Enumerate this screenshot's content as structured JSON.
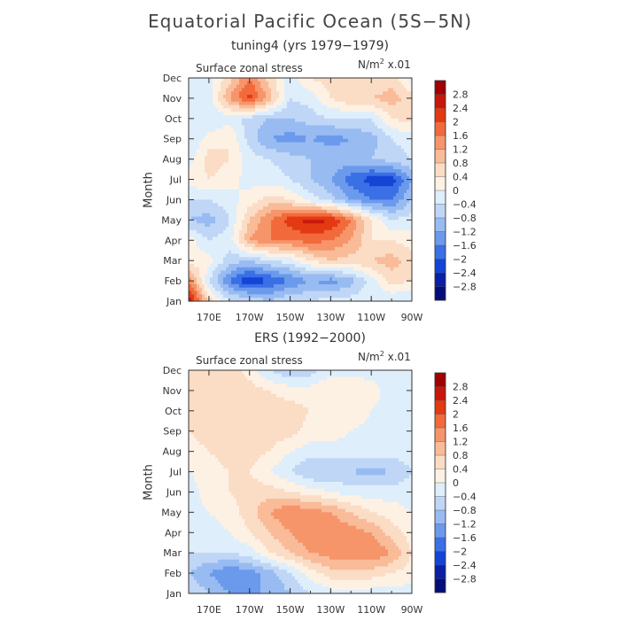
{
  "title": "Equatorial Pacific Ocean (5S−5N)",
  "colorbar": {
    "labels": [
      "2.8",
      "2.4",
      "2",
      "1.6",
      "1.2",
      "0.8",
      "0.4",
      "0",
      "−0.4",
      "−0.8",
      "−1.2",
      "−1.6",
      "−2",
      "−2.4",
      "−2.8"
    ],
    "colors": [
      "#a00000",
      "#c8170b",
      "#e33a14",
      "#f26a3b",
      "#f7956a",
      "#f9bb98",
      "#fbdcc5",
      "#fdf1e4",
      "#deeefb",
      "#bfd6f6",
      "#98bbf2",
      "#6b9aec",
      "#3a6fe5",
      "#1444d6",
      "#0a1fa6",
      "#040e79"
    ]
  },
  "chart_data": [
    {
      "type": "heatmap",
      "title": "tuning4 (yrs 1979−1979)",
      "variable": "Surface zonal stress",
      "units_prefix": "N/m",
      "units_exp": "2",
      "units_suffix": " x.01",
      "ylabel": "Month",
      "xlabel": "",
      "x_ticks": [
        "170E",
        "170W",
        "150W",
        "130W",
        "110W",
        "90W"
      ],
      "y_ticks": [
        "Jan",
        "Feb",
        "Mar",
        "Apr",
        "May",
        "Jun",
        "Jul",
        "Aug",
        "Sep",
        "Oct",
        "Nov",
        "Dec"
      ],
      "x_range_deg_east": [
        160,
        270
      ],
      "levels": [
        -2.8,
        -2.4,
        -2.0,
        -1.6,
        -1.2,
        -0.8,
        -0.4,
        0,
        0.4,
        0.8,
        1.2,
        1.6,
        2.0,
        2.4,
        2.8
      ],
      "grid_lon": [
        160,
        170,
        180,
        190,
        200,
        210,
        220,
        230,
        240,
        250,
        260,
        270
      ],
      "values": [
        [
          2.8,
          0.6,
          -0.4,
          -0.4,
          -0.8,
          -0.4,
          -0.4,
          -0.2,
          -0.2,
          -0.2,
          -0.4,
          -0.4
        ],
        [
          1.6,
          -0.4,
          -1.6,
          -2.4,
          -2.0,
          -1.6,
          -1.2,
          -1.4,
          -1.0,
          -0.2,
          0.6,
          0.4
        ],
        [
          0.2,
          0.2,
          -0.6,
          -0.8,
          -0.4,
          -0.2,
          0.4,
          0.8,
          0.6,
          0.8,
          1.0,
          0.6
        ],
        [
          0.2,
          -0.4,
          -0.2,
          1.2,
          1.6,
          1.6,
          1.8,
          1.6,
          1.2,
          0.4,
          0.4,
          0.2
        ],
        [
          -0.8,
          -1.0,
          -0.4,
          0.8,
          1.6,
          2.2,
          2.6,
          2.4,
          1.6,
          0.4,
          -0.4,
          -0.2
        ],
        [
          -0.4,
          -0.4,
          -0.2,
          0.2,
          0.6,
          0.4,
          -0.2,
          -0.6,
          -1.2,
          -1.6,
          -1.6,
          -0.8
        ],
        [
          0.2,
          0.4,
          0.2,
          -0.2,
          -0.2,
          -0.4,
          -0.8,
          -1.2,
          -1.8,
          -2.2,
          -2.2,
          -1.2
        ],
        [
          -0.2,
          0.6,
          0.4,
          -0.2,
          -0.4,
          -0.6,
          -0.8,
          -0.8,
          -1.0,
          -0.8,
          -0.6,
          -0.4
        ],
        [
          -0.4,
          0.2,
          0.4,
          -0.6,
          -1.2,
          -1.4,
          -1.2,
          -1.4,
          -1.2,
          -1.0,
          -0.4,
          -0.2
        ],
        [
          -0.4,
          -0.4,
          -0.2,
          -0.6,
          -0.8,
          -0.8,
          -0.6,
          -0.4,
          -0.4,
          -0.4,
          0.4,
          0.6
        ],
        [
          -0.4,
          -0.2,
          1.2,
          2.2,
          1.0,
          -0.4,
          -0.2,
          0.4,
          0.8,
          0.8,
          1.0,
          0.6
        ],
        [
          -0.4,
          -0.2,
          0.6,
          1.6,
          0.6,
          -0.2,
          0.4,
          0.6,
          0.4,
          0.4,
          0.6,
          -0.2
        ]
      ]
    },
    {
      "type": "heatmap",
      "title": "ERS (1992−2000)",
      "variable": "Surface zonal stress",
      "units_prefix": "N/m",
      "units_exp": "2",
      "units_suffix": " x.01",
      "ylabel": "Month",
      "xlabel": "",
      "x_ticks": [
        "170E",
        "170W",
        "150W",
        "130W",
        "110W",
        "90W"
      ],
      "y_ticks": [
        "Jan",
        "Feb",
        "Mar",
        "Apr",
        "May",
        "Jun",
        "Jul",
        "Aug",
        "Sep",
        "Oct",
        "Nov",
        "Dec"
      ],
      "x_range_deg_east": [
        160,
        270
      ],
      "levels": [
        -2.8,
        -2.4,
        -2.0,
        -1.6,
        -1.2,
        -0.8,
        -0.4,
        0,
        0.4,
        0.8,
        1.2,
        1.6,
        2.0,
        2.4,
        2.8
      ],
      "grid_lon": [
        160,
        170,
        180,
        190,
        200,
        210,
        220,
        230,
        240,
        250,
        260,
        270
      ],
      "values": [
        [
          -0.4,
          -0.8,
          -1.2,
          -1.2,
          -1.2,
          -0.8,
          -0.4,
          -0.2,
          -0.2,
          -0.2,
          -0.2,
          -0.2
        ],
        [
          -0.8,
          -1.2,
          -1.6,
          -1.4,
          -1.0,
          -0.4,
          0.2,
          0.6,
          0.6,
          0.6,
          0.4,
          0.2
        ],
        [
          -0.4,
          -0.4,
          -0.4,
          -0.2,
          0.4,
          0.8,
          1.2,
          1.4,
          1.6,
          1.6,
          1.2,
          0.4
        ],
        [
          -0.2,
          -0.2,
          0.0,
          0.4,
          0.8,
          1.2,
          1.6,
          1.6,
          1.4,
          1.2,
          0.6,
          0.2
        ],
        [
          -0.2,
          0.0,
          0.2,
          0.6,
          1.2,
          1.6,
          1.4,
          1.2,
          0.8,
          0.4,
          0.2,
          0.0
        ],
        [
          -0.2,
          0.2,
          0.4,
          0.6,
          0.6,
          0.4,
          0.2,
          0.0,
          -0.2,
          -0.2,
          -0.2,
          -0.2
        ],
        [
          0.0,
          0.2,
          0.4,
          0.4,
          0.0,
          -0.4,
          -0.8,
          -0.8,
          -0.8,
          -1.0,
          -0.8,
          -0.4
        ],
        [
          0.2,
          0.4,
          0.6,
          0.6,
          0.4,
          0.0,
          -0.2,
          -0.2,
          -0.2,
          -0.2,
          -0.2,
          -0.2
        ],
        [
          0.4,
          0.6,
          0.8,
          0.6,
          0.6,
          0.6,
          0.2,
          0.2,
          0.0,
          -0.2,
          -0.2,
          -0.2
        ],
        [
          0.4,
          0.6,
          0.6,
          0.6,
          0.6,
          0.6,
          0.4,
          0.2,
          0.4,
          0.0,
          -0.2,
          -0.2
        ],
        [
          0.4,
          0.6,
          0.8,
          0.6,
          0.4,
          0.2,
          0.2,
          0.4,
          0.4,
          0.2,
          -0.2,
          -0.2
        ],
        [
          0.6,
          0.6,
          0.6,
          0.2,
          -0.4,
          -0.8,
          -0.6,
          -0.2,
          -0.2,
          -0.2,
          -0.2,
          -0.2
        ]
      ]
    }
  ]
}
